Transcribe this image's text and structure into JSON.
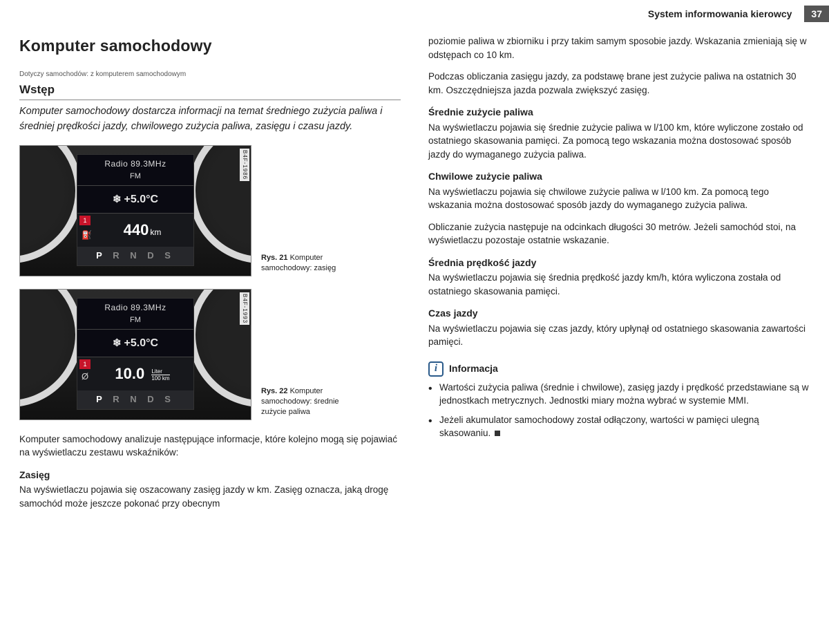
{
  "header": {
    "chapter": "System informowania kierowcy",
    "page_number": "37"
  },
  "left": {
    "section_title": "Komputer samochodowy",
    "applies_to": "Dotyczy samochodów: z komputerem samochodowym",
    "intro_head": "Wstęp",
    "intro_text": "Komputer samochodowy dostarcza informacji na temat średniego zużycia paliwa i średniej prędkości jazdy, chwilowego zużycia paliwa, zasięgu i czasu jazdy.",
    "fig1": {
      "code": "B4F-1986",
      "caption_prefix": "Rys. 21",
      "caption_text": "Komputer samochodowy: zasięg",
      "radio_line": "Radio  89.3MHz",
      "radio_band": "FM",
      "temp": "+5.0°C",
      "tab": "1",
      "value": "440",
      "value_unit": "km",
      "gear_active": "P",
      "gear_rest": "R N D S"
    },
    "fig2": {
      "code": "B4F-1993",
      "caption_prefix": "Rys. 22",
      "caption_text": "Komputer samochodowy: średnie zużycie paliwa",
      "radio_line": "Radio  89.3MHz",
      "radio_band": "FM",
      "temp": "+5.0°C",
      "tab": "1",
      "value": "10.0",
      "l100_top": "Liter",
      "l100_bot": "100 km",
      "gear_active": "P",
      "gear_rest": "R N D S"
    },
    "after_figs": "Komputer samochodowy analizuje następujące informacje, które kolejno mogą się pojawiać na wyświetlaczu zestawu wskaźników:",
    "range_head": "Zasięg",
    "range_text": "Na wyświetlaczu pojawia się oszacowany zasięg jazdy w km. Zasięg oznacza, jaką drogę samochód może jeszcze pokonać przy obecnym"
  },
  "right": {
    "range_cont": "poziomie paliwa w zbiorniku i przy takim samym sposobie jazdy. Wskazania zmieniają się w odstępach co 10 km.",
    "range_p2": "Podczas obliczania zasięgu jazdy, za podstawę brane jest zużycie paliwa na ostatnich 30 km. Oszczędniejsza jazda pozwala zwiększyć zasięg.",
    "avg_head": "Średnie zużycie paliwa",
    "avg_text": "Na wyświetlaczu pojawia się średnie zużycie paliwa w l/100 km, które wyliczone zostało od ostatniego skasowania pamięci. Za pomocą tego wskazania można dostosować sposób jazdy do wymaganego zużycia paliwa.",
    "inst_head": "Chwilowe zużycie paliwa",
    "inst_p1": "Na wyświetlaczu pojawia się chwilowe zużycie paliwa w l/100 km. Za pomocą tego wskazania można dostosować sposób jazdy do wymaganego zużycia paliwa.",
    "inst_p2": "Obliczanie zużycia następuje na odcinkach długości 30 metrów. Jeżeli samochód stoi, na wyświetlaczu pozostaje ostatnie wskazanie.",
    "speed_head": "Średnia prędkość jazdy",
    "speed_text": "Na wyświetlaczu pojawia się średnia prędkość jazdy km/h, która wyliczona została od ostatniego skasowania pamięci.",
    "time_head": "Czas jazdy",
    "time_text": "Na wyświetlaczu pojawia się czas jazdy, który upłynął od ostatniego skasowania zawartości pamięci.",
    "info_label": "Informacja",
    "info_b1": "Wartości zużycia paliwa (średnie i chwilowe), zasięg jazdy i prędkość przedstawiane są w jednostkach metrycznych. Jednostki miary można wybrać w systemie MMI.",
    "info_b2": "Jeżeli akumulator samochodowy został odłączony, wartości w pamięci ulegną skasowaniu."
  }
}
